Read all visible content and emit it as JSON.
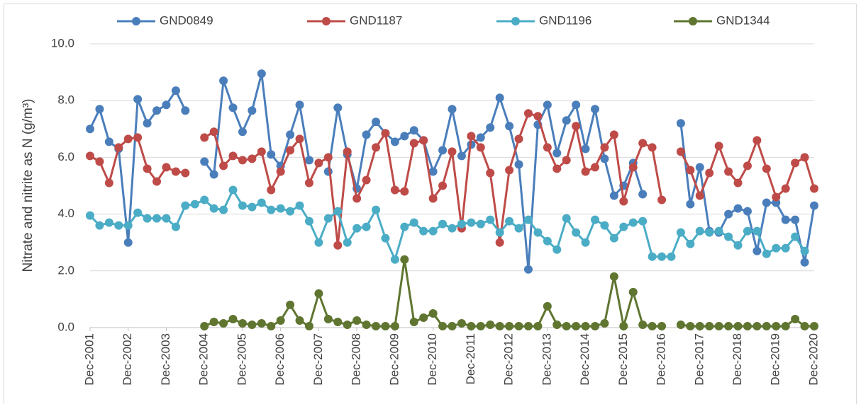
{
  "chart_data": {
    "type": "line",
    "y_label": "Nitrate and nitrite as N (g/m³)",
    "x": [
      "Dec-2001",
      "Mar-2002",
      "Jun-2002",
      "Sep-2002",
      "Dec-2002",
      "Mar-2003",
      "Jun-2003",
      "Sep-2003",
      "Dec-2003",
      "Mar-2004",
      "Jun-2004",
      "Sep-2004",
      "Dec-2004",
      "Mar-2005",
      "Jun-2005",
      "Sep-2005",
      "Dec-2005",
      "Mar-2006",
      "Jun-2006",
      "Sep-2006",
      "Dec-2006",
      "Mar-2007",
      "Jun-2007",
      "Sep-2007",
      "Dec-2007",
      "Mar-2008",
      "Jun-2008",
      "Sep-2008",
      "Dec-2008",
      "Mar-2009",
      "Jun-2009",
      "Sep-2009",
      "Dec-2009",
      "Mar-2010",
      "Jun-2010",
      "Sep-2010",
      "Dec-2010",
      "Mar-2011",
      "Jun-2011",
      "Sep-2011",
      "Dec-2011",
      "Mar-2012",
      "Jun-2012",
      "Sep-2012",
      "Dec-2012",
      "Mar-2013",
      "Jun-2013",
      "Sep-2013",
      "Dec-2013",
      "Mar-2014",
      "Jun-2014",
      "Sep-2014",
      "Dec-2014",
      "Mar-2015",
      "Jun-2015",
      "Sep-2015",
      "Dec-2015",
      "Mar-2016",
      "Jun-2016",
      "Sep-2016",
      "Dec-2016",
      "Mar-2017",
      "Jun-2017",
      "Sep-2017",
      "Dec-2017",
      "Mar-2018",
      "Jun-2018",
      "Sep-2018",
      "Dec-2018",
      "Mar-2019",
      "Jun-2019",
      "Sep-2019",
      "Dec-2019",
      "Mar-2020",
      "Jun-2020",
      "Sep-2020",
      "Dec-2020"
    ],
    "xticks": [
      "Dec-2001",
      "Dec-2002",
      "Dec-2003",
      "Dec-2004",
      "Dec-2005",
      "Dec-2006",
      "Dec-2007",
      "Dec-2008",
      "Dec-2009",
      "Dec-2010",
      "Dec-2011",
      "Dec-2012",
      "Dec-2013",
      "Dec-2014",
      "Dec-2015",
      "Dec-2016",
      "Dec-2017",
      "Dec-2018",
      "Dec-2019",
      "Dec-2020"
    ],
    "ylim": [
      0,
      10
    ],
    "yticks": [
      {
        "value": 0,
        "label": "0.0"
      },
      {
        "value": 2,
        "label": "2.0"
      },
      {
        "value": 4,
        "label": "4.0"
      },
      {
        "value": 6,
        "label": "6.0"
      },
      {
        "value": 8,
        "label": "8.0"
      },
      {
        "value": 10,
        "label": "10.0"
      }
    ],
    "grid": true,
    "legend": "top",
    "series": [
      {
        "name": "GND0849",
        "color": "#4a7ebb",
        "values": [
          7.0,
          7.7,
          6.55,
          6.3,
          3.0,
          8.05,
          7.2,
          7.65,
          7.85,
          8.35,
          7.65,
          null,
          5.85,
          5.4,
          8.7,
          7.75,
          6.9,
          7.65,
          8.95,
          6.1,
          5.7,
          6.8,
          7.85,
          5.9,
          null,
          5.5,
          7.75,
          6.1,
          4.9,
          6.8,
          7.25,
          6.85,
          6.55,
          6.75,
          6.95,
          6.6,
          5.5,
          6.25,
          7.7,
          6.05,
          6.45,
          6.7,
          7.05,
          8.1,
          7.1,
          5.75,
          2.05,
          7.15,
          7.85,
          6.15,
          7.3,
          7.85,
          6.3,
          7.7,
          5.95,
          4.65,
          5.0,
          5.8,
          4.7,
          null,
          null,
          null,
          7.2,
          4.35,
          5.65,
          3.4,
          3.35,
          4.0,
          4.2,
          4.1,
          2.7,
          4.4,
          4.4,
          3.8,
          3.8,
          2.3,
          4.3
        ]
      },
      {
        "name": "GND1187",
        "color": "#be4b48",
        "values": [
          6.05,
          5.85,
          5.1,
          6.35,
          6.65,
          6.7,
          5.6,
          5.15,
          5.65,
          5.5,
          5.45,
          null,
          6.7,
          6.9,
          5.7,
          6.05,
          5.9,
          5.95,
          6.2,
          4.85,
          5.5,
          6.25,
          6.65,
          5.1,
          5.8,
          6.0,
          2.9,
          6.2,
          4.55,
          5.2,
          6.35,
          6.85,
          4.85,
          4.8,
          6.5,
          6.6,
          4.55,
          5.0,
          6.2,
          3.5,
          6.75,
          6.35,
          5.45,
          3.0,
          5.55,
          6.65,
          7.55,
          7.45,
          6.35,
          5.6,
          5.9,
          7.1,
          5.5,
          5.65,
          6.35,
          6.8,
          4.45,
          5.65,
          6.5,
          6.35,
          4.5,
          null,
          6.2,
          5.55,
          4.65,
          5.45,
          6.4,
          5.5,
          5.1,
          5.7,
          6.6,
          5.6,
          4.6,
          4.9,
          5.8,
          6.0,
          4.9
        ]
      },
      {
        "name": "GND1196",
        "color": "#4bacc6",
        "values": [
          3.95,
          3.6,
          3.7,
          3.6,
          3.6,
          4.05,
          3.85,
          3.85,
          3.85,
          3.55,
          4.3,
          4.35,
          4.5,
          4.2,
          4.15,
          4.85,
          4.3,
          4.25,
          4.4,
          4.15,
          4.2,
          4.1,
          4.3,
          3.75,
          3.0,
          3.85,
          4.1,
          3.0,
          3.5,
          3.55,
          4.15,
          3.15,
          2.4,
          3.55,
          3.7,
          3.4,
          3.4,
          3.65,
          3.5,
          3.65,
          3.7,
          3.65,
          3.8,
          3.35,
          3.75,
          3.5,
          3.8,
          3.35,
          3.05,
          2.75,
          3.85,
          3.35,
          3.0,
          3.8,
          3.6,
          3.15,
          3.55,
          3.7,
          3.75,
          2.5,
          2.5,
          2.5,
          3.35,
          2.95,
          3.4,
          3.35,
          3.4,
          3.2,
          2.9,
          3.4,
          3.4,
          2.6,
          2.8,
          2.8,
          3.2,
          2.7,
          null
        ]
      },
      {
        "name": "GND1344",
        "color": "#5f7530",
        "values": [
          null,
          null,
          null,
          null,
          null,
          null,
          null,
          null,
          null,
          null,
          null,
          null,
          0.05,
          0.2,
          0.15,
          0.3,
          0.15,
          0.1,
          0.15,
          0.05,
          0.25,
          0.8,
          0.25,
          0.05,
          1.2,
          0.3,
          0.2,
          0.1,
          0.25,
          0.1,
          0.05,
          0.05,
          0.05,
          2.4,
          0.2,
          0.35,
          0.5,
          0.05,
          0.05,
          0.15,
          0.05,
          0.05,
          0.1,
          0.05,
          0.05,
          0.05,
          0.05,
          0.05,
          0.75,
          0.1,
          0.05,
          0.05,
          0.05,
          0.05,
          0.15,
          1.8,
          0.05,
          1.25,
          0.1,
          0.05,
          0.05,
          null,
          0.1,
          0.05,
          0.05,
          0.05,
          0.05,
          0.05,
          0.05,
          0.05,
          0.05,
          0.05,
          0.05,
          0.05,
          0.3,
          0.05,
          0.05
        ]
      }
    ]
  }
}
